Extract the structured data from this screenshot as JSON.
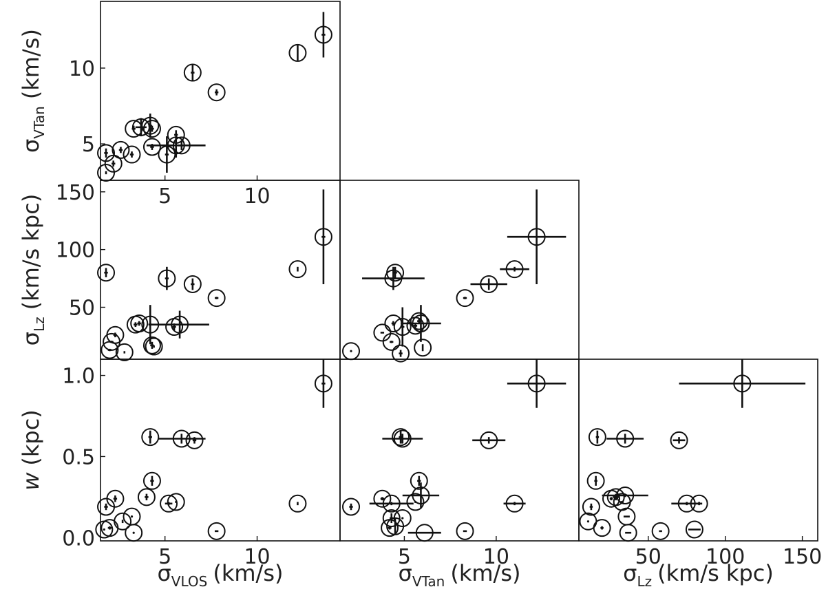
{
  "chart_data": [
    {
      "type": "scatter",
      "panel": "sigma_vtan-vs-sigma_vlos",
      "xlim": [
        1.5,
        14.5
      ],
      "ylim": [
        2.6,
        14.4
      ],
      "xticks": [
        {
          "v": 5,
          "label": "5"
        },
        {
          "v": 10,
          "label": "10"
        }
      ],
      "yticks": [
        {
          "v": 5,
          "label": "5"
        },
        {
          "v": 10,
          "label": "10"
        }
      ],
      "xlabel": "",
      "ylabel": {
        "main": "σ",
        "sub": "VTan",
        "unit": "(km/s)"
      },
      "points": [
        {
          "x": 1.8,
          "y": 3.1,
          "xerr": 0,
          "yerr": 0.1
        },
        {
          "x": 1.8,
          "y": 4.4,
          "xerr": 0.1,
          "yerr": 0.3
        },
        {
          "x": 2.2,
          "y": 3.7,
          "xerr": 0.1,
          "yerr": 0.2
        },
        {
          "x": 2.6,
          "y": 4.6,
          "xerr": 0.1,
          "yerr": 0.2
        },
        {
          "x": 3.2,
          "y": 4.3,
          "xerr": 0.1,
          "yerr": 0.2
        },
        {
          "x": 3.3,
          "y": 6.0,
          "xerr": 0.1,
          "yerr": 0.2
        },
        {
          "x": 3.7,
          "y": 6.1,
          "xerr": 0.3,
          "yerr": 0.6
        },
        {
          "x": 4.2,
          "y": 6.2,
          "xerr": 0.1,
          "yerr": 0.8
        },
        {
          "x": 4.3,
          "y": 6.0,
          "xerr": 0.1,
          "yerr": 0.2
        },
        {
          "x": 4.3,
          "y": 4.8,
          "xerr": 0.1,
          "yerr": 0.2
        },
        {
          "x": 5.1,
          "y": 4.3,
          "xerr": 0.1,
          "yerr": 1.2
        },
        {
          "x": 5.6,
          "y": 5.6,
          "xerr": 0.1,
          "yerr": 0.3
        },
        {
          "x": 5.6,
          "y": 4.9,
          "xerr": 1.6,
          "yerr": 0.8
        },
        {
          "x": 5.9,
          "y": 4.9,
          "xerr": 0.2,
          "yerr": 0.3
        },
        {
          "x": 6.5,
          "y": 9.7,
          "xerr": 0.1,
          "yerr": 0.5
        },
        {
          "x": 7.8,
          "y": 8.4,
          "xerr": 0.1,
          "yerr": 0.2
        },
        {
          "x": 12.2,
          "y": 11.0,
          "xerr": 0,
          "yerr": 0.5
        },
        {
          "x": 13.6,
          "y": 12.2,
          "xerr": 0.1,
          "yerr": 1.5
        }
      ]
    },
    {
      "type": "scatter",
      "panel": "sigma_lz-vs-sigma_vlos",
      "xlim": [
        1.5,
        14.5
      ],
      "ylim": [
        5,
        160
      ],
      "xticks": [],
      "yticks": [
        {
          "v": 50,
          "label": "50"
        },
        {
          "v": 100,
          "label": "100"
        },
        {
          "v": 150,
          "label": "150"
        }
      ],
      "xlabel": "",
      "ylabel": {
        "main": "σ",
        "sub": "Lz",
        "unit": "(km/s kpc)"
      },
      "points": [
        {
          "x": 1.8,
          "y": 80,
          "xerr": 0.1,
          "yerr": 4
        },
        {
          "x": 2.0,
          "y": 13,
          "xerr": 0.1,
          "yerr": 1
        },
        {
          "x": 2.1,
          "y": 20,
          "xerr": 0.1,
          "yerr": 1
        },
        {
          "x": 2.3,
          "y": 26,
          "xerr": 0.1,
          "yerr": 2
        },
        {
          "x": 2.8,
          "y": 11,
          "xerr": 0,
          "yerr": 1
        },
        {
          "x": 3.4,
          "y": 35,
          "xerr": 0.1,
          "yerr": 2
        },
        {
          "x": 3.6,
          "y": 36,
          "xerr": 0.1,
          "yerr": 2
        },
        {
          "x": 4.2,
          "y": 35,
          "xerr": 0.1,
          "yerr": 17
        },
        {
          "x": 4.3,
          "y": 17,
          "xerr": 0.1,
          "yerr": 3
        },
        {
          "x": 4.4,
          "y": 16,
          "xerr": 0,
          "yerr": 1
        },
        {
          "x": 5.1,
          "y": 75,
          "xerr": 0.1,
          "yerr": 10
        },
        {
          "x": 5.5,
          "y": 33,
          "xerr": 0.1,
          "yerr": 3
        },
        {
          "x": 5.8,
          "y": 35,
          "xerr": 1.6,
          "yerr": 12
        },
        {
          "x": 6.5,
          "y": 70,
          "xerr": 0.1,
          "yerr": 5
        },
        {
          "x": 7.8,
          "y": 58,
          "xerr": 0.1,
          "yerr": 1
        },
        {
          "x": 12.2,
          "y": 83,
          "xerr": 0,
          "yerr": 2
        },
        {
          "x": 13.6,
          "y": 111,
          "xerr": 0.1,
          "yerr": 41
        }
      ]
    },
    {
      "type": "scatter",
      "panel": "sigma_lz-vs-sigma_vtan",
      "xlim": [
        1.5,
        14.5
      ],
      "ylim": [
        5,
        160
      ],
      "xticks": [],
      "yticks": [],
      "xlabel": "",
      "ylabel": "",
      "points": [
        {
          "x": 2.1,
          "y": 12,
          "xerr": 0,
          "yerr": 0
        },
        {
          "x": 3.8,
          "y": 28,
          "xerr": 0.1,
          "yerr": 0
        },
        {
          "x": 4.4,
          "y": 75,
          "xerr": 1.7,
          "yerr": 10
        },
        {
          "x": 4.5,
          "y": 80,
          "xerr": 0.1,
          "yerr": 5
        },
        {
          "x": 4.4,
          "y": 36,
          "xerr": 0.1,
          "yerr": 2
        },
        {
          "x": 4.3,
          "y": 20,
          "xerr": 0.1,
          "yerr": 1
        },
        {
          "x": 4.8,
          "y": 10,
          "xerr": 0.1,
          "yerr": 3
        },
        {
          "x": 4.9,
          "y": 33,
          "xerr": 0.1,
          "yerr": 17
        },
        {
          "x": 5.6,
          "y": 34,
          "xerr": 0.1,
          "yerr": 2
        },
        {
          "x": 5.8,
          "y": 38,
          "xerr": 0.1,
          "yerr": 2
        },
        {
          "x": 5.9,
          "y": 36,
          "xerr": 1.1,
          "yerr": 16
        },
        {
          "x": 6.0,
          "y": 15,
          "xerr": 0,
          "yerr": 3
        },
        {
          "x": 8.3,
          "y": 58,
          "xerr": 0.1,
          "yerr": 1
        },
        {
          "x": 9.6,
          "y": 70,
          "xerr": 1.0,
          "yerr": 5
        },
        {
          "x": 11.0,
          "y": 83,
          "xerr": 0.8,
          "yerr": 2
        },
        {
          "x": 12.2,
          "y": 111,
          "xerr": 1.6,
          "yerr": 41
        }
      ]
    },
    {
      "type": "scatter",
      "panel": "w-vs-sigma_vlos",
      "xlim": [
        1.5,
        14.5
      ],
      "ylim": [
        -0.02,
        1.1
      ],
      "xticks": [
        {
          "v": 5,
          "label": "5"
        },
        {
          "v": 10,
          "label": "10"
        }
      ],
      "yticks": [
        {
          "v": 0.0,
          "label": "0.0"
        },
        {
          "v": 0.5,
          "label": "0.5"
        },
        {
          "v": 1.0,
          "label": "1.0"
        }
      ],
      "xlabel": {
        "main": "σ",
        "sub": "VLOS",
        "unit": "(km/s)"
      },
      "ylabel": {
        "main": "w",
        "sub": "",
        "unit": "(kpc)"
      },
      "points": [
        {
          "x": 1.7,
          "y": 0.05,
          "xerr": 0,
          "yerr": 0
        },
        {
          "x": 1.8,
          "y": 0.19,
          "xerr": 0.1,
          "yerr": 0.02
        },
        {
          "x": 2.0,
          "y": 0.06,
          "xerr": 0.1,
          "yerr": 0.01
        },
        {
          "x": 2.3,
          "y": 0.24,
          "xerr": 0.1,
          "yerr": 0.02
        },
        {
          "x": 2.7,
          "y": 0.1,
          "xerr": 0,
          "yerr": 0.01
        },
        {
          "x": 3.2,
          "y": 0.13,
          "xerr": 0,
          "yerr": 0
        },
        {
          "x": 3.3,
          "y": 0.03,
          "xerr": 0,
          "yerr": 0
        },
        {
          "x": 4.0,
          "y": 0.25,
          "xerr": 0.1,
          "yerr": 0.02
        },
        {
          "x": 4.2,
          "y": 0.62,
          "xerr": 0.1,
          "yerr": 0.04
        },
        {
          "x": 4.3,
          "y": 0.35,
          "xerr": 0.1,
          "yerr": 0.03
        },
        {
          "x": 5.2,
          "y": 0.21,
          "xerr": 0.2,
          "yerr": 0.01
        },
        {
          "x": 5.6,
          "y": 0.22,
          "xerr": 0,
          "yerr": 0
        },
        {
          "x": 5.9,
          "y": 0.61,
          "xerr": 1.3,
          "yerr": 0.03
        },
        {
          "x": 6.6,
          "y": 0.6,
          "xerr": 0.1,
          "yerr": 0.02
        },
        {
          "x": 7.8,
          "y": 0.04,
          "xerr": 0.1,
          "yerr": 0
        },
        {
          "x": 12.2,
          "y": 0.21,
          "xerr": 0,
          "yerr": 0.01
        },
        {
          "x": 13.6,
          "y": 0.95,
          "xerr": 0.1,
          "yerr": 0.15
        }
      ]
    },
    {
      "type": "scatter",
      "panel": "w-vs-sigma_vtan",
      "xlim": [
        1.5,
        14.5
      ],
      "ylim": [
        -0.02,
        1.1
      ],
      "xticks": [
        {
          "v": 5,
          "label": "5"
        },
        {
          "v": 10,
          "label": "10"
        }
      ],
      "yticks": [],
      "xlabel": {
        "main": "σ",
        "sub": "VTan",
        "unit": "(km/s)"
      },
      "ylabel": "",
      "points": [
        {
          "x": 2.1,
          "y": 0.19,
          "xerr": 0.1,
          "yerr": 0.02
        },
        {
          "x": 3.8,
          "y": 0.24,
          "xerr": 0.1,
          "yerr": 0.01
        },
        {
          "x": 4.2,
          "y": 0.06,
          "xerr": 0.1,
          "yerr": 0.01
        },
        {
          "x": 4.3,
          "y": 0.21,
          "xerr": 1.2,
          "yerr": 0.01
        },
        {
          "x": 4.3,
          "y": 0.12,
          "xerr": 0.1,
          "yerr": 0.03
        },
        {
          "x": 4.5,
          "y": 0.07,
          "xerr": 0,
          "yerr": 0.05
        },
        {
          "x": 4.8,
          "y": 0.62,
          "xerr": 0.1,
          "yerr": 0.04
        },
        {
          "x": 4.9,
          "y": 0.61,
          "xerr": 1.1,
          "yerr": 0.03
        },
        {
          "x": 4.9,
          "y": 0.12,
          "xerr": 0,
          "yerr": 0
        },
        {
          "x": 5.6,
          "y": 0.22,
          "xerr": 0,
          "yerr": 0
        },
        {
          "x": 5.8,
          "y": 0.35,
          "xerr": 0.1,
          "yerr": 0.03
        },
        {
          "x": 5.9,
          "y": 0.26,
          "xerr": 1.0,
          "yerr": 0.08
        },
        {
          "x": 6.1,
          "y": 0.03,
          "xerr": 0.9,
          "yerr": 0
        },
        {
          "x": 8.3,
          "y": 0.04,
          "xerr": 0.1,
          "yerr": 0
        },
        {
          "x": 9.6,
          "y": 0.6,
          "xerr": 0.9,
          "yerr": 0.02
        },
        {
          "x": 11.0,
          "y": 0.21,
          "xerr": 0.6,
          "yerr": 0.01
        },
        {
          "x": 12.2,
          "y": 0.95,
          "xerr": 1.6,
          "yerr": 0.15
        }
      ]
    },
    {
      "type": "scatter",
      "panel": "w-vs-sigma_lz",
      "xlim": [
        5,
        160
      ],
      "ylim": [
        -0.02,
        1.1
      ],
      "xticks": [
        {
          "v": 50,
          "label": "50"
        },
        {
          "v": 100,
          "label": "100"
        },
        {
          "v": 150,
          "label": "150"
        }
      ],
      "yticks": [],
      "xlabel": {
        "main": "σ",
        "sub": "Lz",
        "unit": "(km/s kpc)"
      },
      "ylabel": "",
      "points": [
        {
          "x": 11,
          "y": 0.1,
          "xerr": 0,
          "yerr": 0
        },
        {
          "x": 13,
          "y": 0.19,
          "xerr": 1,
          "yerr": 0.02
        },
        {
          "x": 16,
          "y": 0.35,
          "xerr": 1,
          "yerr": 0.03
        },
        {
          "x": 17,
          "y": 0.62,
          "xerr": 1,
          "yerr": 0.04
        },
        {
          "x": 20,
          "y": 0.06,
          "xerr": 1,
          "yerr": 0.01
        },
        {
          "x": 26,
          "y": 0.24,
          "xerr": 1,
          "yerr": 0.01
        },
        {
          "x": 29,
          "y": 0.25,
          "xerr": 2,
          "yerr": 0.02
        },
        {
          "x": 33,
          "y": 0.22,
          "xerr": 1,
          "yerr": 0
        },
        {
          "x": 35,
          "y": 0.61,
          "xerr": 12,
          "yerr": 0.03
        },
        {
          "x": 35,
          "y": 0.26,
          "xerr": 15,
          "yerr": 0.01
        },
        {
          "x": 36,
          "y": 0.13,
          "xerr": 2,
          "yerr": 0
        },
        {
          "x": 37,
          "y": 0.03,
          "xerr": 2,
          "yerr": 0
        },
        {
          "x": 58,
          "y": 0.04,
          "xerr": 1,
          "yerr": 0
        },
        {
          "x": 70,
          "y": 0.6,
          "xerr": 4,
          "yerr": 0.02
        },
        {
          "x": 75,
          "y": 0.21,
          "xerr": 10,
          "yerr": 0.01
        },
        {
          "x": 80,
          "y": 0.05,
          "xerr": 4,
          "yerr": 0
        },
        {
          "x": 83,
          "y": 0.21,
          "xerr": 2,
          "yerr": 0.01
        },
        {
          "x": 111,
          "y": 0.95,
          "xerr": 41,
          "yerr": 0.15
        }
      ]
    }
  ]
}
